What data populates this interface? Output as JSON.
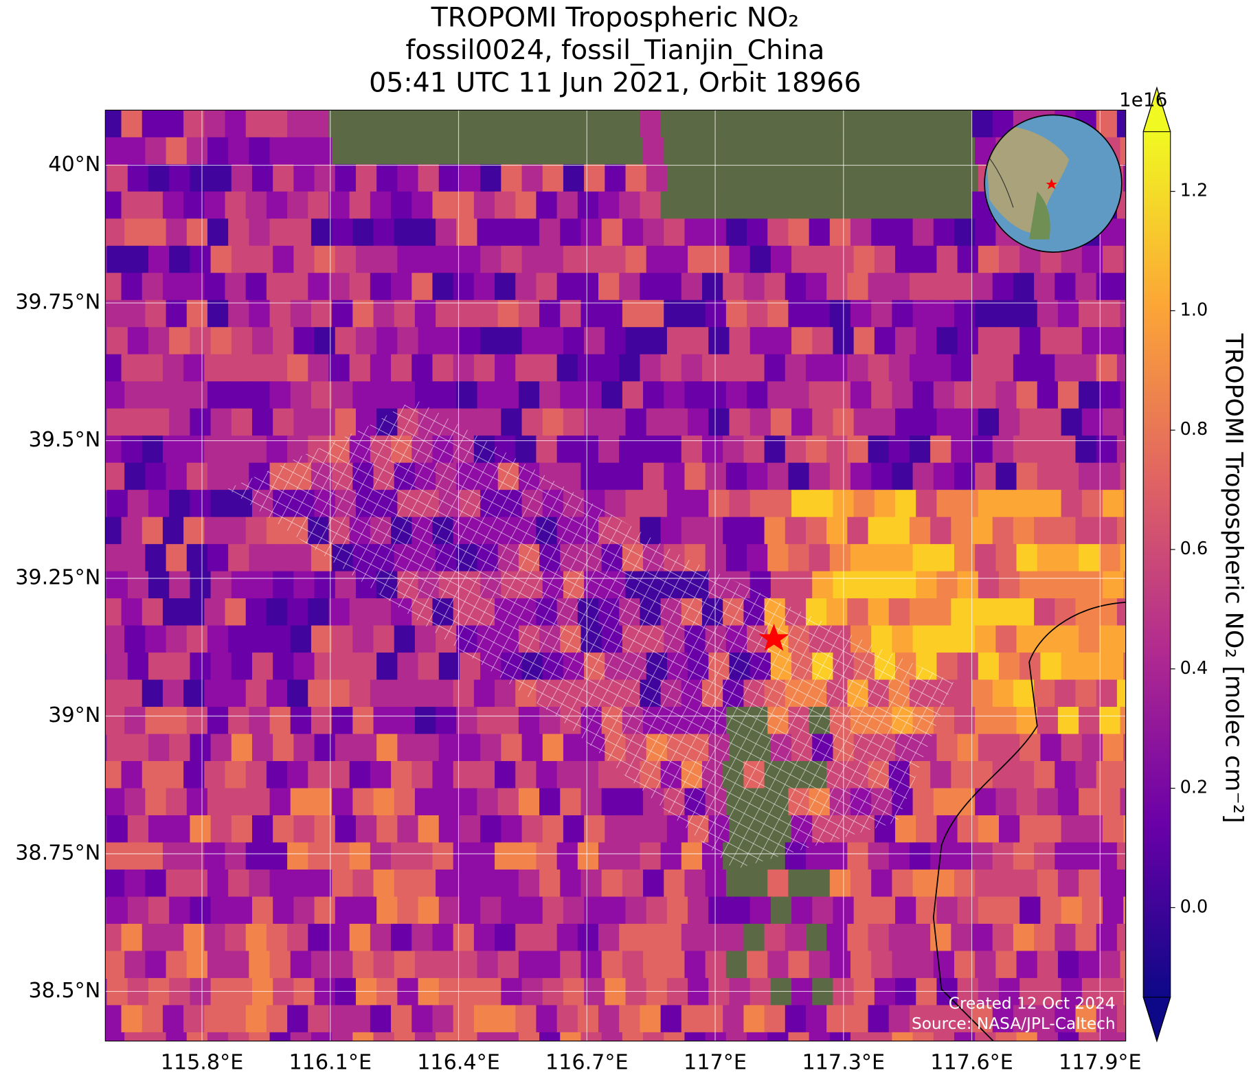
{
  "title_lines": [
    "TROPOMI Tropospheric NO₂",
    "fossil0024, fossil_Tianjin_China",
    "05:41 UTC 11 Jun 2021, Orbit 18966"
  ],
  "map": {
    "xlim": [
      115.574,
      117.96
    ],
    "ylim": [
      38.41,
      40.1
    ],
    "xticks": [
      {
        "value": 115.8,
        "label": "115.8°E"
      },
      {
        "value": 116.1,
        "label": "116.1°E"
      },
      {
        "value": 116.4,
        "label": "116.4°E"
      },
      {
        "value": 116.7,
        "label": "116.7°E"
      },
      {
        "value": 117,
        "label": "117°E"
      },
      {
        "value": 117.3,
        "label": "117.3°E"
      },
      {
        "value": 117.6,
        "label": "117.6°E"
      },
      {
        "value": 117.9,
        "label": "117.9°E"
      }
    ],
    "yticks": [
      {
        "value": 38.5,
        "label": "38.5°N"
      },
      {
        "value": 38.75,
        "label": "38.75°N"
      },
      {
        "value": 39,
        "label": "39°N"
      },
      {
        "value": 39.25,
        "label": "39.25°N"
      },
      {
        "value": 39.5,
        "label": "39.5°N"
      },
      {
        "value": 39.75,
        "label": "39.75°N"
      },
      {
        "value": 40,
        "label": "40°N"
      }
    ]
  },
  "colorbar": {
    "label": "TROPOMI Tropospheric NO₂ [molec cm⁻²]",
    "exponent": "1e16",
    "clim": [
      -0.15,
      1.3
    ],
    "ticks": [
      {
        "value": 0,
        "label": "0.0"
      },
      0.2,
      0.4,
      0.6,
      0.8,
      {
        "value": 1,
        "label": "1.0"
      },
      1.2
    ]
  },
  "credits": [
    "Created 12 Oct 2024",
    "Source: NASA/JPL-Caltech"
  ]
}
